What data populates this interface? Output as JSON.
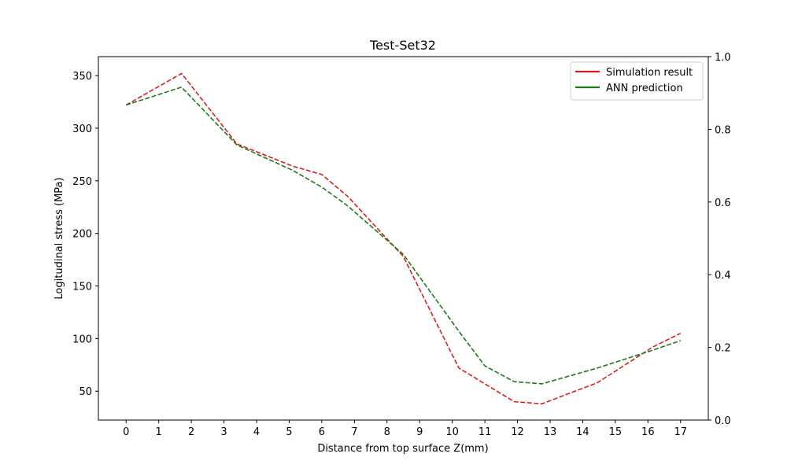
{
  "chart_data": {
    "type": "line",
    "title": "Test-Set32",
    "xlabel": "Distance from top surface Z(mm)",
    "ylabel": "Logitudinal stress (MPa)",
    "xlim": [
      -0.85,
      17.85
    ],
    "ylim": [
      22.5,
      368
    ],
    "x_ticks": [
      0,
      1,
      2,
      3,
      4,
      5,
      6,
      7,
      8,
      9,
      10,
      11,
      12,
      13,
      14,
      15,
      16,
      17
    ],
    "y_ticks": [
      50,
      100,
      150,
      200,
      250,
      300,
      350
    ],
    "y2lim": [
      0,
      1
    ],
    "y2_ticks": [
      "0.0",
      "0.2",
      "0.4",
      "0.6",
      "0.8",
      "1.0"
    ],
    "legend_position": "top-right",
    "grid": false,
    "series": [
      {
        "name": "Simulation result",
        "color": "#d62020",
        "style": "dashed",
        "x": [
          0,
          1.7,
          3.4,
          5.1,
          6.0,
          6.8,
          8.5,
          10.2,
          11.9,
          12.75,
          14.45,
          16.15,
          17.0
        ],
        "y": [
          322,
          352,
          285,
          264,
          256,
          235,
          178,
          72,
          40,
          38,
          58,
          92,
          105
        ]
      },
      {
        "name": "ANN prediction",
        "color": "#1a7a1a",
        "style": "dashed",
        "x": [
          0,
          1.7,
          3.4,
          5.1,
          6.0,
          6.8,
          8.5,
          10.2,
          11.0,
          11.9,
          12.75,
          14.45,
          16.15,
          17.0
        ],
        "y": [
          322,
          339,
          284,
          260,
          244,
          226,
          180,
          107,
          74,
          59,
          57,
          72,
          89,
          98
        ]
      }
    ]
  }
}
